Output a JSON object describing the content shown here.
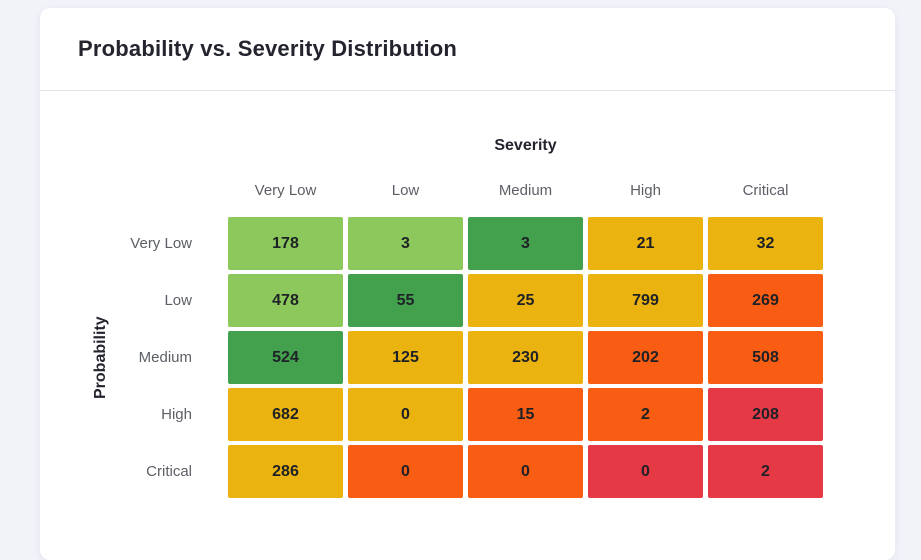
{
  "colors": {
    "page_background": "#f1f3f9",
    "card_background": "#ffffff",
    "divider": "#e3e3e8",
    "title_text": "#23242e",
    "axis_label_text": "#5c5f66",
    "cell_text": "#1e2126",
    "palette": {
      "light_green": "#8CC85C",
      "green": "#43A04D",
      "amber": "#EAB30F",
      "orange": "#F95D13",
      "red": "#E63946"
    }
  },
  "card": {
    "title": "Probability vs. Severity Distribution"
  },
  "chart_data": {
    "type": "heatmap",
    "title": "Probability vs. Severity Distribution",
    "xlabel": "Severity",
    "ylabel": "Probability",
    "columns": [
      "Very Low",
      "Low",
      "Medium",
      "High",
      "Critical"
    ],
    "rows": [
      "Very Low",
      "Low",
      "Medium",
      "High",
      "Critical"
    ],
    "values": [
      [
        178,
        3,
        3,
        21,
        32
      ],
      [
        478,
        55,
        25,
        799,
        269
      ],
      [
        524,
        125,
        230,
        202,
        508
      ],
      [
        682,
        0,
        15,
        2,
        208
      ],
      [
        286,
        0,
        0,
        0,
        2
      ]
    ],
    "cell_colors": [
      [
        "light_green",
        "light_green",
        "green",
        "amber",
        "amber"
      ],
      [
        "light_green",
        "green",
        "amber",
        "amber",
        "orange"
      ],
      [
        "green",
        "amber",
        "amber",
        "orange",
        "orange"
      ],
      [
        "amber",
        "amber",
        "orange",
        "orange",
        "red"
      ],
      [
        "amber",
        "orange",
        "orange",
        "red",
        "red"
      ]
    ],
    "legend": "none",
    "grid": "off"
  }
}
